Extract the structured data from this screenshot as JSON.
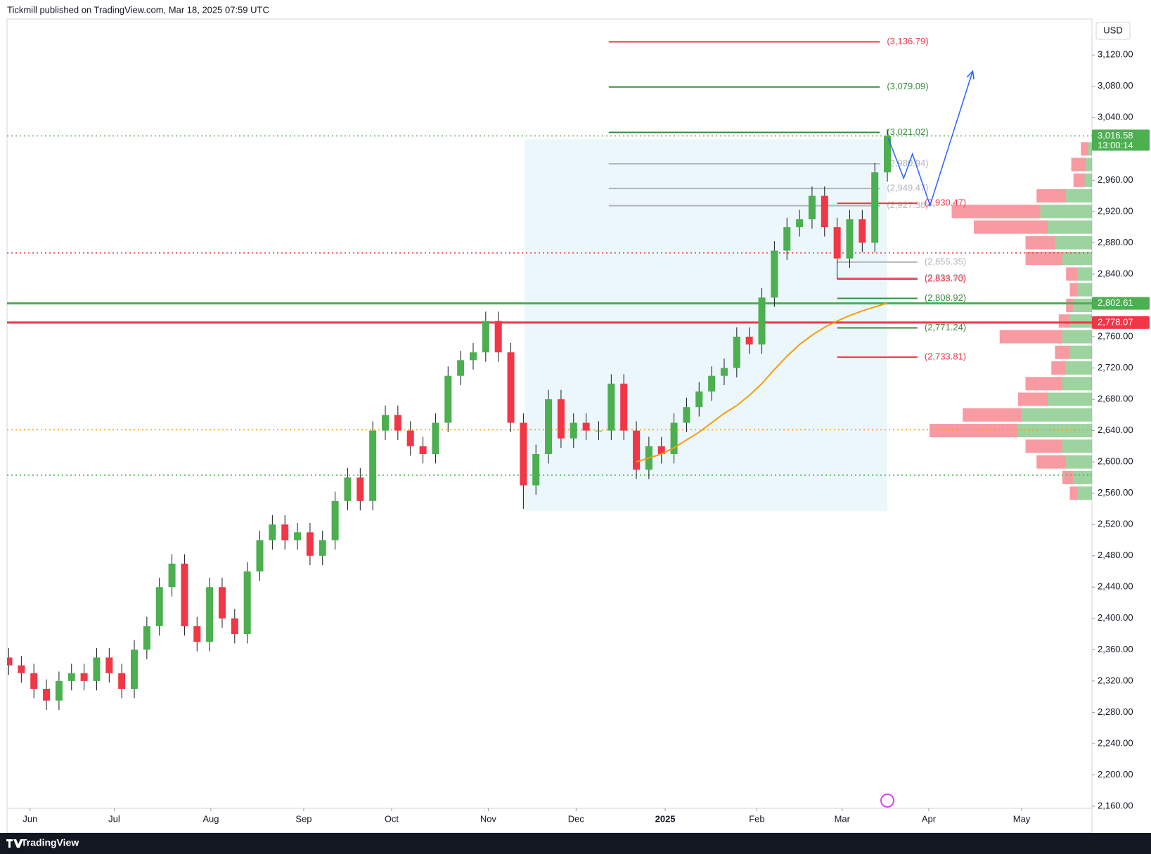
{
  "chart_data": {
    "type": "candlestick",
    "header": "Tickmill published on TradingView.com, Mar 18, 2025 07:59 UTC",
    "footer": "TradingView",
    "currency": "USD",
    "xlim": [
      -0.14,
      86.3
    ],
    "ylim": [
      2157.3,
      3166
    ],
    "xticks": [
      {
        "value": 1.7,
        "label": "Jun"
      },
      {
        "value": 8.4,
        "label": "Jul"
      },
      {
        "value": 16.1,
        "label": "Aug"
      },
      {
        "value": 23.5,
        "label": "Sep"
      },
      {
        "value": 30.5,
        "label": "Oct"
      },
      {
        "value": 38.2,
        "label": "Nov"
      },
      {
        "value": 45.2,
        "label": "Dec"
      },
      {
        "value": 52.3,
        "label": "2025"
      },
      {
        "value": 59.6,
        "label": "Feb"
      },
      {
        "value": 66.4,
        "label": "Mar"
      },
      {
        "value": 73.3,
        "label": "Apr"
      },
      {
        "value": 80.7,
        "label": "May"
      }
    ],
    "yticks": [
      {
        "value": 2160,
        "label": "2,160.00"
      },
      {
        "value": 2200,
        "label": "2,200.00"
      },
      {
        "value": 2240,
        "label": "2,240.00"
      },
      {
        "value": 2280,
        "label": "2,280.00"
      },
      {
        "value": 2320,
        "label": "2,320.00"
      },
      {
        "value": 2360,
        "label": "2,360.00"
      },
      {
        "value": 2400,
        "label": "2,400.00"
      },
      {
        "value": 2440,
        "label": "2,440.00"
      },
      {
        "value": 2480,
        "label": "2,480.00"
      },
      {
        "value": 2520,
        "label": "2,520.00"
      },
      {
        "value": 2560,
        "label": "2,560.00"
      },
      {
        "value": 2600,
        "label": "2,600.00"
      },
      {
        "value": 2640,
        "label": "2,640.00"
      },
      {
        "value": 2680,
        "label": "2,680.00"
      },
      {
        "value": 2720,
        "label": "2,720.00"
      },
      {
        "value": 2760,
        "label": "2,760.00"
      },
      {
        "value": 2840,
        "label": "2,840.00"
      },
      {
        "value": 2880,
        "label": "2,880.00"
      },
      {
        "value": 2920,
        "label": "2,920.00"
      },
      {
        "value": 2960,
        "label": "2,960.00"
      },
      {
        "value": 3040,
        "label": "3,040.00"
      },
      {
        "value": 3080,
        "label": "3,080.00"
      },
      {
        "value": 3120,
        "label": "3,120.00"
      }
    ],
    "up_color": "#4caf50",
    "down_color": "#f23645",
    "candles": {
      "x": [
        0,
        1,
        2,
        3,
        4,
        5,
        6,
        7,
        8,
        9,
        10,
        11,
        12,
        13,
        14,
        15,
        16,
        17,
        18,
        19,
        20,
        21,
        22,
        23,
        24,
        25,
        26,
        27,
        28,
        29,
        30,
        31,
        32,
        33,
        34,
        35,
        36,
        37,
        38,
        39,
        40,
        41,
        42,
        43,
        44,
        45,
        46,
        47,
        48,
        49,
        50,
        51,
        52,
        53,
        54,
        55,
        56,
        57,
        58,
        59,
        60,
        61,
        62,
        63,
        64,
        65,
        66,
        67,
        68,
        69,
        70
      ],
      "open": [
        2350,
        2340,
        2330,
        2310,
        2295,
        2320,
        2330,
        2320,
        2350,
        2330,
        2310,
        2360,
        2390,
        2440,
        2470,
        2390,
        2370,
        2440,
        2400,
        2380,
        2460,
        2500,
        2520,
        2500,
        2510,
        2480,
        2500,
        2550,
        2580,
        2550,
        2640,
        2660,
        2640,
        2620,
        2610,
        2650,
        2710,
        2730,
        2740,
        2780,
        2740,
        2650,
        2570,
        2610,
        2680,
        2630,
        2650,
        2640,
        2640,
        2700,
        2640,
        2590,
        2620,
        2610,
        2650,
        2670,
        2690,
        2710,
        2720,
        2760,
        2750,
        2810,
        2870,
        2900,
        2910,
        2940,
        2900,
        2860,
        2910,
        2880,
        2970
      ],
      "high": [
        2362,
        2352,
        2342,
        2322,
        2332,
        2342,
        2342,
        2362,
        2362,
        2342,
        2372,
        2402,
        2452,
        2482,
        2482,
        2402,
        2452,
        2452,
        2412,
        2472,
        2512,
        2532,
        2532,
        2522,
        2522,
        2512,
        2562,
        2592,
        2592,
        2652,
        2672,
        2672,
        2652,
        2632,
        2662,
        2722,
        2742,
        2752,
        2792,
        2792,
        2752,
        2662,
        2622,
        2692,
        2692,
        2662,
        2662,
        2652,
        2712,
        2712,
        2652,
        2632,
        2632,
        2662,
        2682,
        2702,
        2722,
        2732,
        2772,
        2772,
        2822,
        2882,
        2912,
        2922,
        2952,
        2952,
        2912,
        2922,
        2922,
        2982,
        3025
      ],
      "low": [
        2328,
        2318,
        2298,
        2283,
        2283,
        2308,
        2308,
        2308,
        2318,
        2298,
        2298,
        2348,
        2378,
        2428,
        2378,
        2358,
        2358,
        2388,
        2368,
        2368,
        2448,
        2488,
        2488,
        2488,
        2468,
        2468,
        2488,
        2538,
        2538,
        2538,
        2628,
        2628,
        2608,
        2598,
        2598,
        2638,
        2698,
        2718,
        2728,
        2728,
        2638,
        2540,
        2558,
        2598,
        2618,
        2618,
        2628,
        2628,
        2628,
        2628,
        2578,
        2578,
        2598,
        2598,
        2638,
        2658,
        2678,
        2698,
        2708,
        2738,
        2738,
        2798,
        2858,
        2888,
        2898,
        2888,
        2834,
        2848,
        2868,
        2868,
        2958
      ],
      "close": [
        2340,
        2330,
        2310,
        2295,
        2320,
        2330,
        2320,
        2350,
        2330,
        2310,
        2360,
        2390,
        2440,
        2470,
        2390,
        2370,
        2440,
        2400,
        2380,
        2460,
        2500,
        2520,
        2500,
        2510,
        2480,
        2500,
        2550,
        2580,
        2550,
        2640,
        2660,
        2640,
        2620,
        2610,
        2650,
        2710,
        2730,
        2740,
        2780,
        2740,
        2650,
        2570,
        2610,
        2680,
        2630,
        2650,
        2640,
        2640,
        2700,
        2640,
        2590,
        2620,
        2610,
        2650,
        2670,
        2690,
        2710,
        2720,
        2760,
        2750,
        2810,
        2870,
        2900,
        2910,
        2940,
        2900,
        2860,
        2910,
        2880,
        2970,
        3016.58
      ]
    },
    "ma": {
      "color": "#f59d0b",
      "x": [
        50,
        51,
        52,
        53,
        54,
        55,
        56,
        57,
        58,
        59,
        60,
        61,
        62,
        63,
        64,
        65,
        66,
        67,
        68,
        69,
        70
      ],
      "values": [
        2600,
        2605,
        2610,
        2618,
        2628,
        2638,
        2650,
        2662,
        2672,
        2685,
        2700,
        2718,
        2735,
        2750,
        2762,
        2772,
        2780,
        2787,
        2793,
        2798,
        2803
      ]
    },
    "projection": {
      "color": "#2962ff",
      "x": [
        70.06,
        71.3,
        72,
        73.4,
        76.8
      ],
      "values": [
        3014,
        2962.5,
        2993.4,
        2927.8,
        3099.4
      ]
    },
    "range_box": {
      "color": "#e3f4f9",
      "x": [
        41.1,
        70
      ],
      "y": [
        2537,
        3012
      ]
    },
    "hlines": [
      {
        "value": 2867,
        "color": "#f23645",
        "style": "dotted"
      },
      {
        "value": 2641,
        "color": "#ff9800",
        "style": "dotted"
      },
      {
        "value": 2583,
        "color": "#4caf50",
        "style": "dotted"
      },
      {
        "value": 3016.58,
        "color": "#4caf50",
        "style": "dotted"
      },
      {
        "value": 2802.61,
        "color": "#4caf50",
        "style": "solid"
      },
      {
        "value": 2778.07,
        "color": "#f23645",
        "style": "solid"
      }
    ],
    "levels": [
      {
        "value": 3136.79,
        "label": "(3,136.79)",
        "color": "#f23645",
        "x": [
          47.8,
          69.4
        ]
      },
      {
        "value": 3079.09,
        "label": "(3,079.09)",
        "color": "#388e3c",
        "x": [
          47.8,
          69.4
        ]
      },
      {
        "value": 3021.02,
        "label": "(3,021.02)",
        "color": "#388e3c",
        "x": [
          47.8,
          69.4
        ]
      },
      {
        "value": 2980.94,
        "label": "(2,980.94)",
        "color": "#b2b5be",
        "x": [
          47.8,
          69.4
        ]
      },
      {
        "value": 2949.47,
        "label": "(2,949.47)",
        "color": "#b2b5be",
        "x": [
          47.8,
          69.4
        ]
      },
      {
        "value": 2927.38,
        "label": "(2,927.38)",
        "color": "#b2b5be",
        "x": [
          47.8,
          69.4
        ]
      },
      {
        "value": 2930.47,
        "label": "(2,930.47)",
        "color": "#f23645",
        "x": [
          66,
          72.4
        ]
      },
      {
        "value": 2855.35,
        "label": "(2,855.35)",
        "color": "#b2b5be",
        "x": [
          66,
          72.4
        ]
      },
      {
        "value": 2834.93,
        "label": "(2,834.93)",
        "color": "#b2b5be",
        "x": [
          66,
          72.4
        ]
      },
      {
        "value": 2833.7,
        "label": "(2,833.70)",
        "color": "#f23645",
        "x": [
          66,
          72.4
        ]
      },
      {
        "value": 2808.92,
        "label": "(2,808.92)",
        "color": "#388e3c",
        "x": [
          66,
          72.4
        ]
      },
      {
        "value": 2771.24,
        "label": "(2,771.24)",
        "color": "#388e3c",
        "x": [
          66,
          72.4
        ]
      },
      {
        "value": 2733.81,
        "label": "(2,733.81)",
        "color": "#f23645",
        "x": [
          66,
          72.4
        ]
      }
    ],
    "price_tags": [
      {
        "value": 3016.58,
        "label": "3,016.58",
        "timer": "13:00:14",
        "color": "#4caf50"
      },
      {
        "value": 2802.61,
        "label": "2,802.61",
        "color": "#4caf50"
      },
      {
        "value": 2778.07,
        "label": "2,778.07",
        "color": "#f23645"
      }
    ],
    "volume_profile": {
      "prices": [
        2560,
        2580,
        2600,
        2620,
        2640,
        2660,
        2680,
        2700,
        2720,
        2740,
        2760,
        2780,
        2800,
        2820,
        2840,
        2860,
        2880,
        2900,
        2920,
        2940,
        2960,
        2980,
        3000
      ],
      "buy": [
        20,
        25,
        35,
        40,
        100,
        95,
        60,
        40,
        35,
        30,
        40,
        30,
        25,
        20,
        20,
        40,
        50,
        60,
        70,
        35,
        10,
        8,
        5
      ],
      "sell": [
        10,
        15,
        40,
        50,
        120,
        80,
        40,
        50,
        20,
        20,
        85,
        15,
        10,
        10,
        15,
        50,
        40,
        100,
        120,
        40,
        15,
        20,
        10
      ]
    }
  }
}
